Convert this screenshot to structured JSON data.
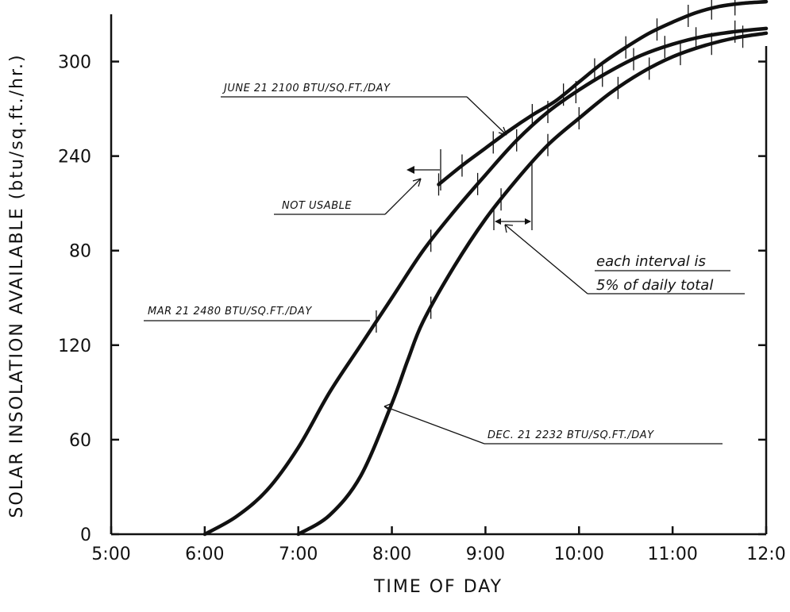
{
  "chart_data": {
    "type": "line",
    "title": "",
    "xlabel": "TIME OF DAY",
    "ylabel": "SOLAR INSOLATION AVAILABLE (btu/sq.ft./hr.)",
    "x_ticks": [
      {
        "hour": 5,
        "label": "5:00"
      },
      {
        "hour": 6,
        "label": "6:00"
      },
      {
        "hour": 7,
        "label": "7:00"
      },
      {
        "hour": 8,
        "label": "8:00"
      },
      {
        "hour": 9,
        "label": "9:00"
      },
      {
        "hour": 10,
        "label": "10:00"
      },
      {
        "hour": 11,
        "label": "11:00"
      },
      {
        "hour": 12,
        "label": "12:0"
      }
    ],
    "y_ticks": [
      {
        "label": "0"
      },
      {
        "label": "60"
      },
      {
        "label": "120"
      },
      {
        "label": "80"
      },
      {
        "label": "240"
      },
      {
        "label": "300"
      }
    ],
    "series": [
      {
        "name": "MAR 21 2480 BTU/SQ.FT./DAY",
        "x": [
          "6:00",
          "6:20",
          "6:40",
          "7:00",
          "7:20",
          "7:40",
          "8:00",
          "8:20",
          "8:40",
          "9:00",
          "9:20",
          "9:40",
          "10:00",
          "10:20",
          "10:40",
          "11:00",
          "11:20",
          "11:40",
          "12:00"
        ],
        "y": [
          0,
          11,
          28,
          55,
          90,
          120,
          150,
          180,
          205,
          228,
          250,
          268,
          282,
          294,
          304,
          311,
          316,
          319,
          321
        ]
      },
      {
        "name": "DEC. 21 2232 BTU/SQ.FT./DAY",
        "x": [
          "7:00",
          "7:20",
          "7:40",
          "8:00",
          "8:10",
          "8:20",
          "8:40",
          "9:00",
          "9:20",
          "9:40",
          "10:00",
          "10:20",
          "10:40",
          "11:00",
          "11:20",
          "11:40",
          "12:00"
        ],
        "y": [
          0,
          12,
          37,
          83,
          110,
          135,
          170,
          200,
          225,
          247,
          264,
          280,
          293,
          303,
          310,
          315,
          318
        ]
      },
      {
        "name": "JUNE 21 2100 BTU/SQ.FT./DAY",
        "x": [
          "8:30",
          "8:45",
          "9:00",
          "9:15",
          "9:30",
          "9:45",
          "10:00",
          "10:15",
          "10:30",
          "10:45",
          "11:00",
          "11:15",
          "11:30",
          "11:45",
          "12:00"
        ],
        "y": [
          222,
          234,
          245,
          256,
          266,
          275,
          287,
          299,
          309,
          318,
          325,
          331,
          335,
          337,
          338
        ]
      }
    ],
    "interval_marks": {
      "MAR 21 2480 BTU/SQ.FT./DAY": [
        "7:50",
        "8:25",
        "8:55",
        "9:20",
        "9:40",
        "9:58",
        "10:15",
        "10:35",
        "10:55",
        "11:15",
        "11:40"
      ],
      "DEC. 21 2232 BTU/SQ.FT./DAY": [
        "8:25",
        "9:10",
        "9:40",
        "10:00",
        "10:25",
        "10:45",
        "11:05",
        "11:25",
        "11:45"
      ],
      "JUNE 21 2100 BTU/SQ.FT./DAY": [
        "8:30",
        "8:45",
        "9:05",
        "9:30",
        "9:50",
        "10:10",
        "10:30",
        "10:50",
        "11:10",
        "11:25",
        "11:40"
      ]
    },
    "annotations": {
      "june": "JUNE 21 2100 BTU/SQ.FT./DAY",
      "mar": "MAR 21 2480 BTU/SQ.FT./DAY",
      "dec": "DEC. 21 2232 BTU/SQ.FT./DAY",
      "not_usable": "NOT USABLE",
      "interval_line1": "each interval is",
      "interval_line2": "5% of daily total"
    },
    "grid": false,
    "legend": "none"
  }
}
